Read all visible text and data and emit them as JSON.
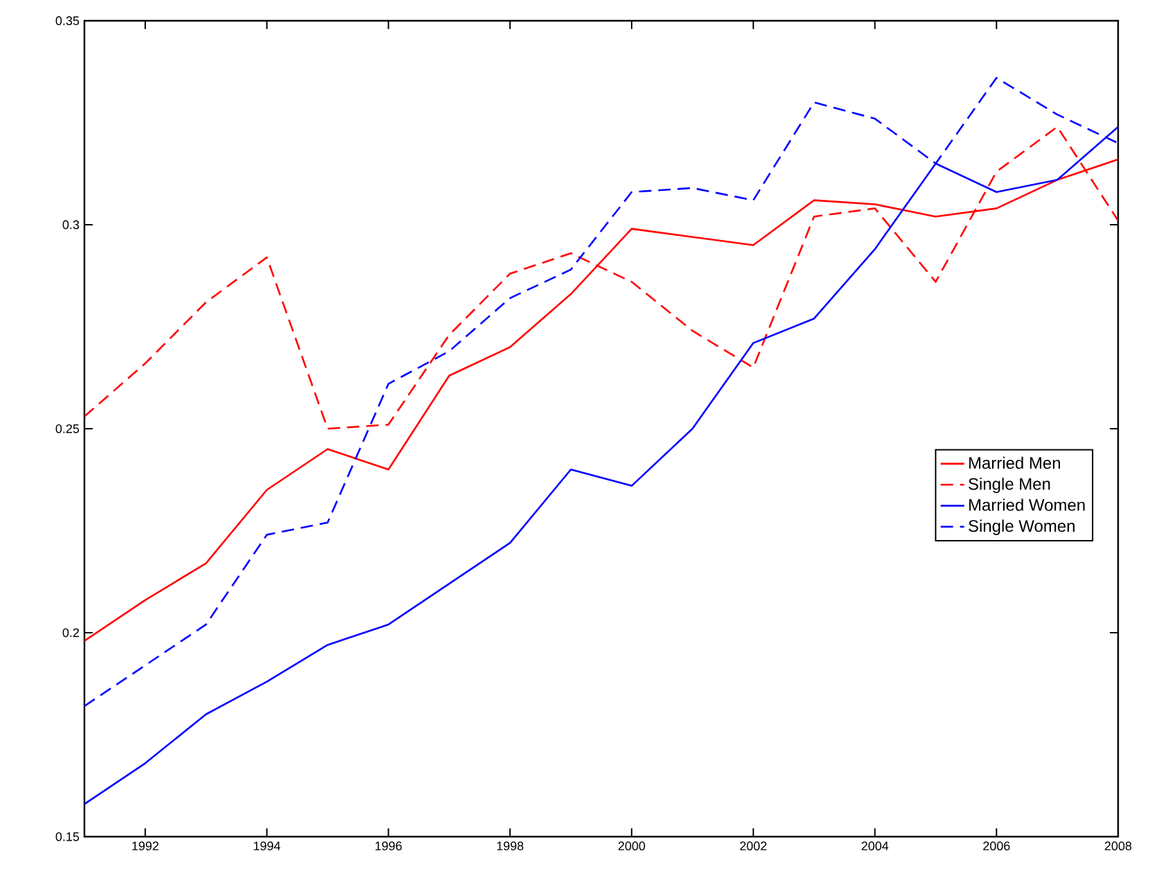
{
  "chart_data": {
    "type": "line",
    "x": [
      1991,
      1992,
      1993,
      1994,
      1995,
      1996,
      1997,
      1998,
      1999,
      2000,
      2001,
      2002,
      2003,
      2004,
      2005,
      2006,
      2007,
      2008
    ],
    "series": [
      {
        "name": "Married Men",
        "color": "#ff0000",
        "line_style": "solid",
        "values": [
          0.198,
          0.208,
          0.217,
          0.235,
          0.245,
          0.24,
          0.263,
          0.27,
          0.283,
          0.299,
          0.297,
          0.295,
          0.306,
          0.305,
          0.302,
          0.304,
          0.311,
          0.316
        ]
      },
      {
        "name": "Single Men",
        "color": "#ff0000",
        "line_style": "dashed",
        "values": [
          0.253,
          0.266,
          0.281,
          0.292,
          0.25,
          0.251,
          0.273,
          0.288,
          0.293,
          0.286,
          0.274,
          0.265,
          0.302,
          0.304,
          0.286,
          0.313,
          0.324,
          0.301
        ]
      },
      {
        "name": "Married Women",
        "color": "#0000ff",
        "line_style": "solid",
        "values": [
          0.158,
          0.168,
          0.18,
          0.188,
          0.197,
          0.202,
          0.212,
          0.222,
          0.24,
          0.236,
          0.25,
          0.271,
          0.277,
          0.294,
          0.315,
          0.308,
          0.311,
          0.324
        ]
      },
      {
        "name": "Single Women",
        "color": "#0000ff",
        "line_style": "dashed",
        "values": [
          0.182,
          0.192,
          0.202,
          0.224,
          0.227,
          0.261,
          0.269,
          0.282,
          0.289,
          0.308,
          0.309,
          0.306,
          0.33,
          0.326,
          0.315,
          0.336,
          0.327,
          0.32
        ]
      }
    ],
    "xlim": [
      1991,
      2008
    ],
    "ylim": [
      0.15,
      0.35
    ],
    "xticks": [
      1992,
      1994,
      1996,
      1998,
      2000,
      2002,
      2004,
      2006,
      2008
    ],
    "yticks": [
      0.15,
      0.2,
      0.25,
      0.3,
      0.35
    ],
    "legend": "right",
    "grid": false
  }
}
